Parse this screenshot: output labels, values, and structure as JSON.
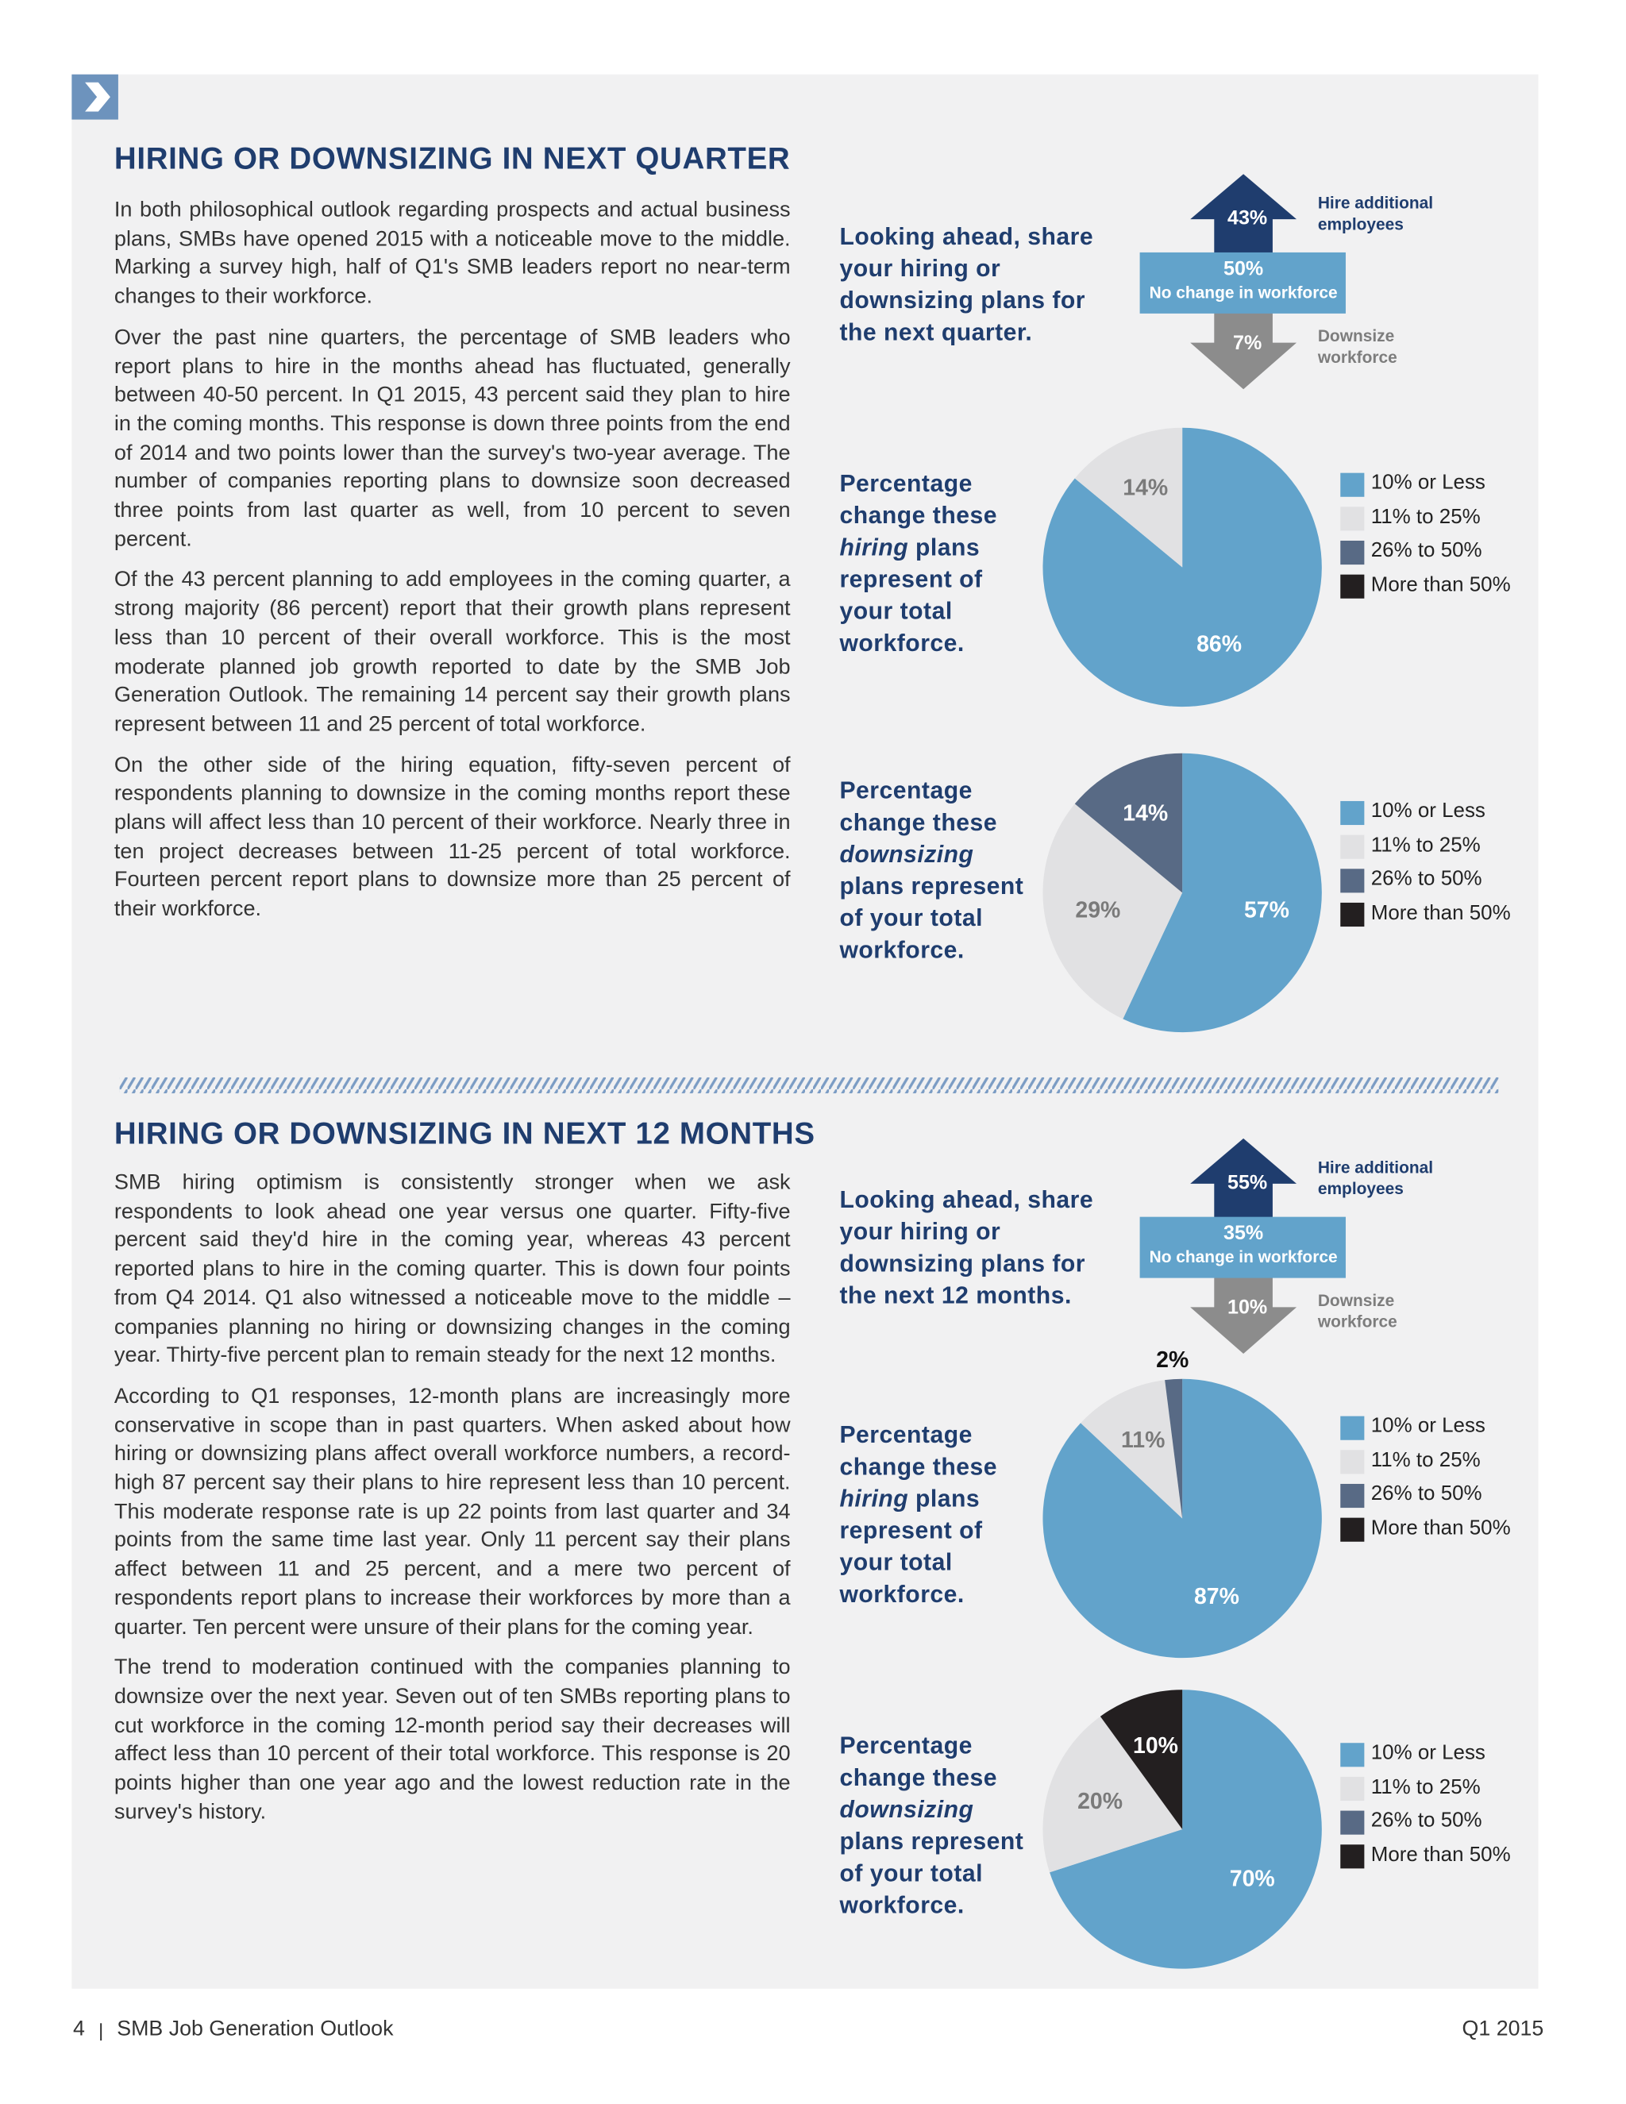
{
  "sections": [
    {
      "title": "HIRING OR DOWNSIZING IN NEXT QUARTER",
      "paragraphs": [
        "In both philosophical outlook regarding prospects and actual business plans, SMBs have opened 2015 with a noticeable move to the middle. Marking a survey high, half of Q1's SMB leaders report no near-term changes to their workforce.",
        "Over the past nine quarters, the percentage of SMB leaders who report plans to hire in the months ahead has fluctuated, generally between 40-50 percent. In Q1 2015, 43 percent said they plan to hire in the coming months. This response is down three points from the end of 2014 and two points lower than the survey's two-year average. The number of companies reporting plans to downsize soon decreased three points from last quarter as well, from 10 percent to seven percent.",
        "Of the 43 percent planning to add employees in the coming quarter, a strong majority (86 percent) report that their growth plans represent less than 10 percent of their overall workforce. This is the most moderate planned job growth reported to date by the SMB Job Generation Outlook. The remaining 14 percent say their growth plans represent between 11 and 25 percent of total workforce.",
        "On the other side of the hiring equation, fifty-seven percent of respondents planning to downsize in the coming months report these plans will affect less than 10 percent of their workforce. Nearly three in ten project decreases between 11-25 percent of total workforce. Fourteen percent report plans to downsize more than 25 percent of their workforce."
      ],
      "outlook": {
        "question": "Looking ahead, share your hiring or downsizing plans for the next quarter.",
        "hire": {
          "value": 43,
          "value_label": "43%",
          "label": "Hire additional employees"
        },
        "no_change": {
          "value": 50,
          "value_label": "50%",
          "label": "No change in workforce"
        },
        "downsize": {
          "value": 7,
          "value_label": "7%",
          "label": "Downsize workforce"
        }
      },
      "pies": [
        {
          "type": "pie",
          "question": [
            {
              "text": "Percentage change these "
            },
            {
              "text": "hiring",
              "italic": true
            },
            {
              "text": " plans represent of your total workforce."
            }
          ],
          "categories": [
            "10% or Less",
            "11% to 25%",
            "26% to 50%",
            "More than 50%"
          ],
          "colors": [
            "#62a3cb",
            "#e1e1e3",
            "#586a85",
            "#231f20"
          ],
          "values": [
            86,
            14,
            null,
            null
          ],
          "value_labels": [
            "86%",
            "14%",
            null,
            null
          ]
        },
        {
          "type": "pie",
          "question": [
            {
              "text": "Percentage change these "
            },
            {
              "text": "downsizing",
              "italic": true
            },
            {
              "text": " plans represent of your total workforce."
            }
          ],
          "categories": [
            "10% or Less",
            "11% to 25%",
            "26% to 50%",
            "More than 50%"
          ],
          "colors": [
            "#62a3cb",
            "#e1e1e3",
            "#586a85",
            "#231f20"
          ],
          "values": [
            57,
            29,
            14,
            null
          ],
          "value_labels": [
            "57%",
            "29%",
            "14%",
            null
          ]
        }
      ]
    },
    {
      "title": "HIRING OR DOWNSIZING IN NEXT 12 MONTHS",
      "paragraphs": [
        "SMB hiring optimism is consistently stronger when we ask respondents to look ahead one year versus one quarter. Fifty-five percent said they'd hire in the coming year, whereas 43 percent reported plans to hire in the coming quarter. This is down four points from Q4 2014. Q1 also witnessed a noticeable move to the middle – companies planning no hiring or downsizing changes in the coming year. Thirty-five percent plan to remain steady for the next 12 months.",
        "According to Q1 responses, 12-month plans are increasingly more conservative in scope than in past quarters. When asked about how hiring or downsizing plans affect overall workforce numbers, a record-high 87 percent say their plans to hire represent less than 10 percent. This moderate response rate is up 22 points from last quarter and 34 points from the same time last year. Only 11 percent say their plans affect between 11 and 25 percent, and a mere two percent of respondents report plans to increase their workforces by more than a quarter. Ten percent were unsure of their plans for the coming year.",
        "The trend to moderation continued with the companies planning to downsize over the next year. Seven out of ten SMBs reporting plans to cut workforce in the coming 12-month period say their decreases will affect less than 10 percent of their total workforce. This response is 20 points higher than one year ago and the lowest reduction rate in the survey's history."
      ],
      "outlook": {
        "question": "Looking ahead, share your hiring or downsizing plans for the next 12 months.",
        "hire": {
          "value": 55,
          "value_label": "55%",
          "label": "Hire additional employees"
        },
        "no_change": {
          "value": 35,
          "value_label": "35%",
          "label": "No change in workforce"
        },
        "downsize": {
          "value": 10,
          "value_label": "10%",
          "label": "Downsize workforce"
        }
      },
      "pies": [
        {
          "type": "pie",
          "question": [
            {
              "text": "Percentage change these "
            },
            {
              "text": "hiring",
              "italic": true
            },
            {
              "text": " plans represent of your total workforce."
            }
          ],
          "categories": [
            "10% or Less",
            "11% to 25%",
            "26% to 50%",
            "More than 50%"
          ],
          "colors": [
            "#62a3cb",
            "#e1e1e3",
            "#586a85",
            "#231f20"
          ],
          "values": [
            87,
            11,
            2,
            null
          ],
          "value_labels": [
            "87%",
            "11%",
            "2%",
            null
          ]
        },
        {
          "type": "pie",
          "question": [
            {
              "text": "Percentage change these "
            },
            {
              "text": "downsizing",
              "italic": true
            },
            {
              "text": " plans represent of your total workforce."
            }
          ],
          "categories": [
            "10% or Less",
            "11% to 25%",
            "26% to 50%",
            "More than 50%"
          ],
          "colors": [
            "#62a3cb",
            "#e1e1e3",
            "#586a85",
            "#231f20"
          ],
          "values": [
            70,
            20,
            null,
            10
          ],
          "value_labels": [
            "70%",
            "20%",
            null,
            "10%"
          ]
        }
      ]
    }
  ],
  "footer": {
    "page": "4",
    "publication": "SMB Job Generation Outlook",
    "issue": "Q1 2015"
  }
}
